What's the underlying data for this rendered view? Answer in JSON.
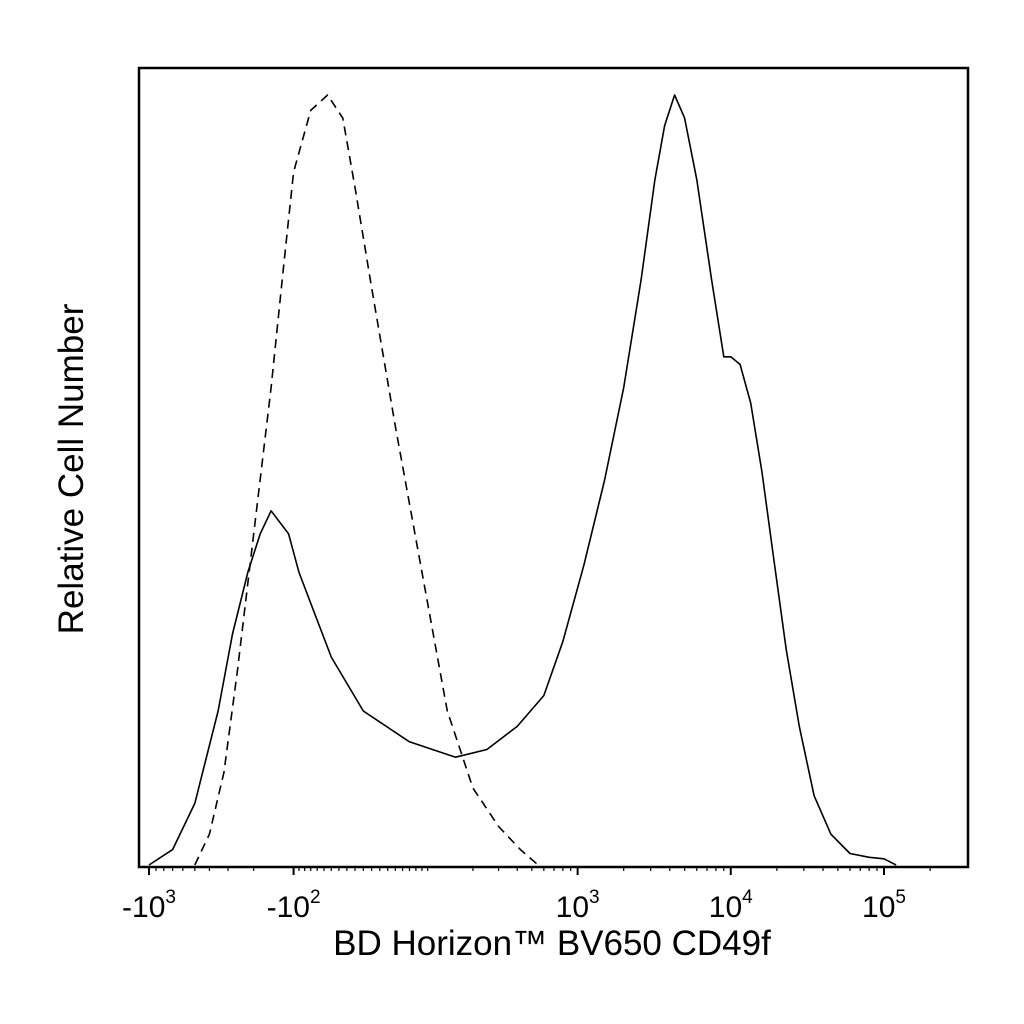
{
  "chart_data": {
    "type": "line",
    "title": "",
    "xlabel": "BD Horizon™ BV650 CD49f",
    "ylabel": "Relative Cell Number",
    "x_scale": "biexponential",
    "x_tick_labels": [
      {
        "value": -1000,
        "base": "-10",
        "exp": "3"
      },
      {
        "value": -100,
        "base": "-10",
        "exp": "2"
      },
      {
        "value": 1000,
        "base": "10",
        "exp": "3"
      },
      {
        "value": 10000,
        "base": "10",
        "exp": "4"
      },
      {
        "value": 100000,
        "base": "10",
        "exp": "5"
      }
    ],
    "xlim": [
      -1500,
      260000
    ],
    "ylim": [
      0,
      1.0
    ],
    "grid": false,
    "legend": "none",
    "series": [
      {
        "style": "solid",
        "color": "#000000",
        "x": [
          -1000,
          -700,
          -500,
          -350,
          -280,
          -220,
          -180,
          -150,
          -110,
          -90,
          -70,
          -40,
          0,
          60,
          150,
          250,
          400,
          600,
          800,
          1100,
          1500,
          2000,
          2600,
          3200,
          3700,
          4300,
          5000,
          6000,
          7500,
          9000,
          10000,
          11500,
          13500,
          16000,
          19000,
          23000,
          28000,
          35000,
          45000,
          60000,
          80000,
          100000,
          120000
        ],
        "y": [
          0.0,
          0.02,
          0.08,
          0.2,
          0.3,
          0.38,
          0.43,
          0.46,
          0.43,
          0.38,
          0.34,
          0.27,
          0.2,
          0.16,
          0.14,
          0.15,
          0.18,
          0.22,
          0.29,
          0.39,
          0.5,
          0.62,
          0.76,
          0.89,
          0.96,
          1.0,
          0.97,
          0.89,
          0.76,
          0.66,
          0.66,
          0.65,
          0.6,
          0.51,
          0.4,
          0.28,
          0.18,
          0.09,
          0.04,
          0.015,
          0.01,
          0.008,
          0.0
        ]
      },
      {
        "style": "dashed",
        "color": "#000000",
        "x": [
          -500,
          -400,
          -320,
          -260,
          -200,
          -150,
          -120,
          -100,
          -70,
          -45,
          -25,
          -10,
          10,
          40,
          80,
          130,
          200,
          300,
          420,
          550
        ],
        "y": [
          0.0,
          0.04,
          0.12,
          0.25,
          0.43,
          0.62,
          0.78,
          0.9,
          0.98,
          1.0,
          0.97,
          0.88,
          0.75,
          0.57,
          0.38,
          0.2,
          0.1,
          0.05,
          0.02,
          0.0
        ]
      }
    ]
  }
}
